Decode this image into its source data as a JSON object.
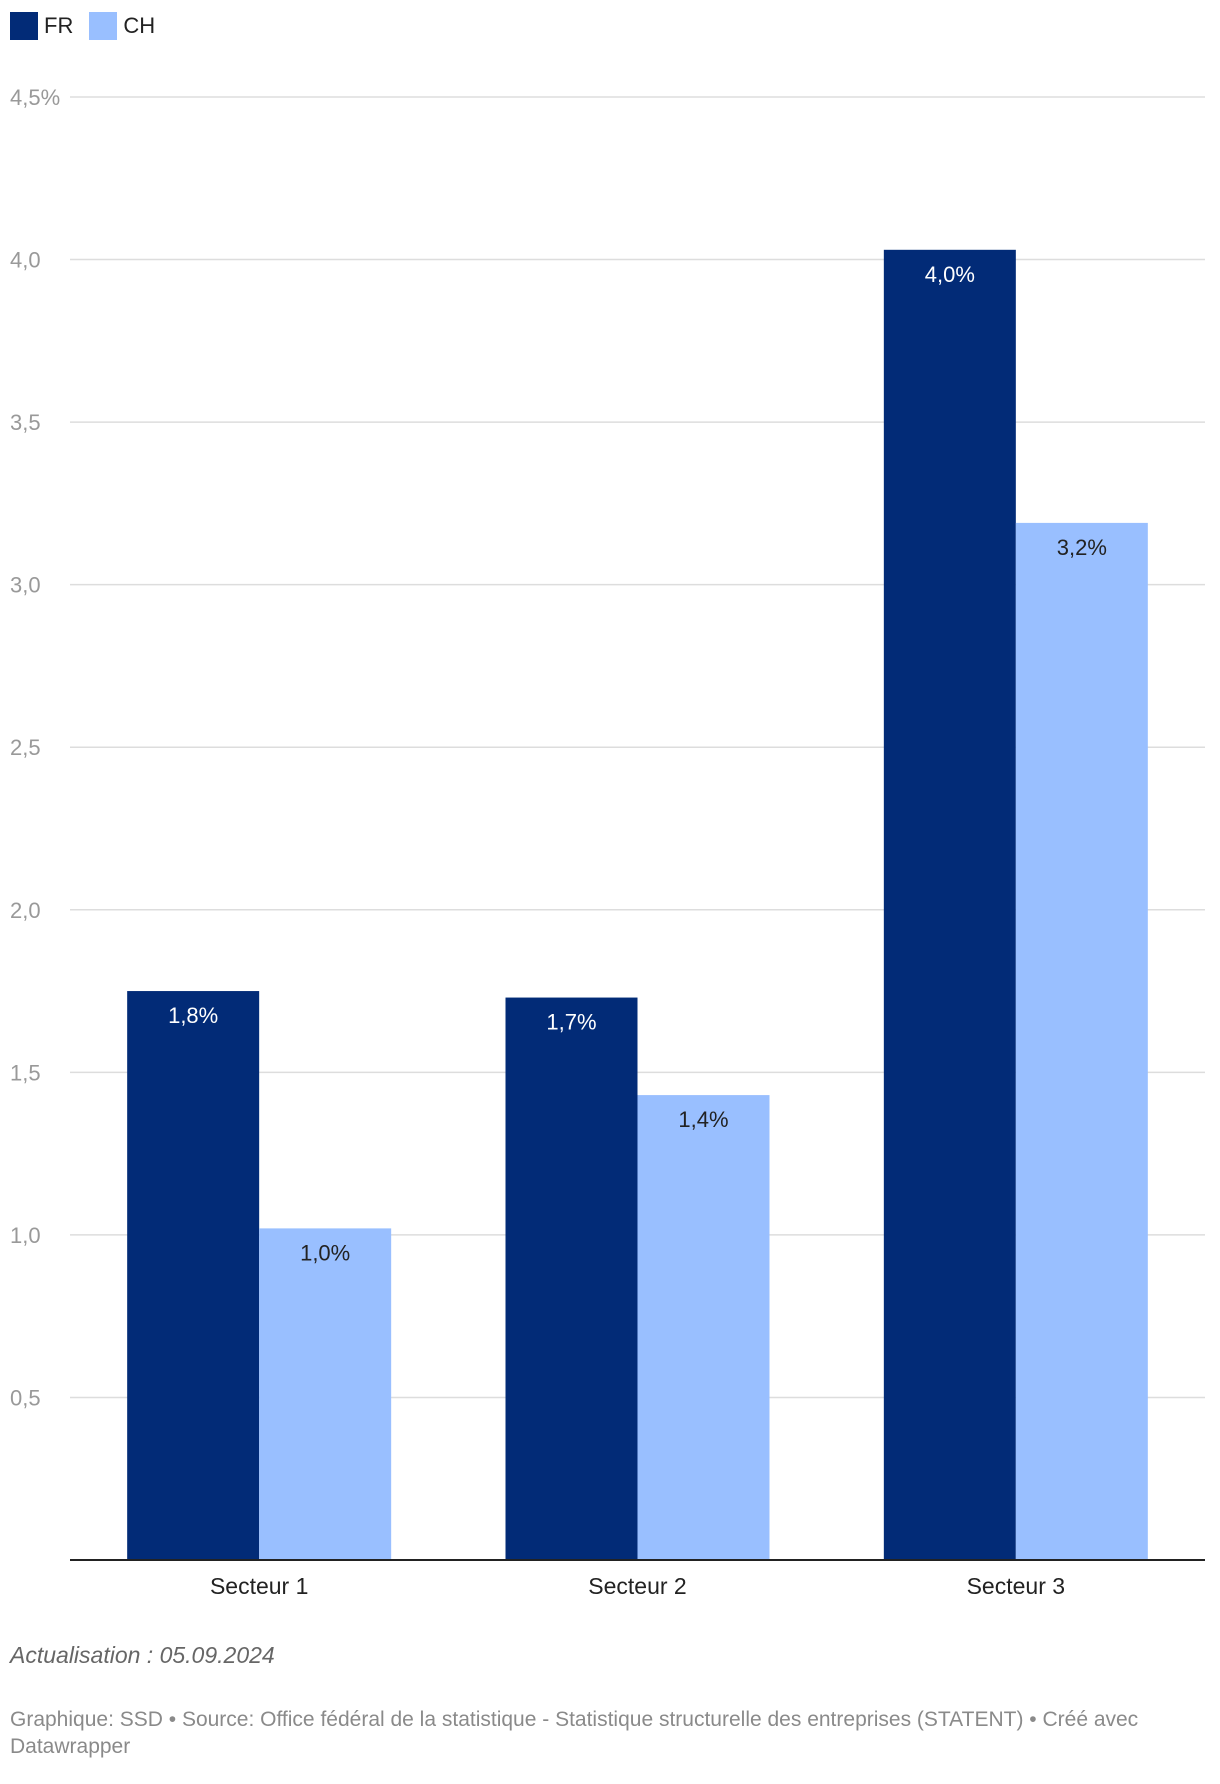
{
  "legend": [
    {
      "name": "FR",
      "color": "#022b77"
    },
    {
      "name": "CH",
      "color": "#99bfff"
    }
  ],
  "chart_data": {
    "type": "bar",
    "categories": [
      "Secteur 1",
      "Secteur 2",
      "Secteur 3"
    ],
    "series": [
      {
        "name": "FR",
        "color": "#022b77",
        "values": [
          1.75,
          1.73,
          4.03
        ],
        "labels": [
          "1,8%",
          "1,7%",
          "4,0%"
        ]
      },
      {
        "name": "CH",
        "color": "#99bfff",
        "values": [
          1.02,
          1.43,
          3.19
        ],
        "labels": [
          "1,0%",
          "1,4%",
          "3,2%"
        ]
      }
    ],
    "ylim": [
      0,
      4.5
    ],
    "yticks": [
      {
        "value": 0.5,
        "label": "0,5"
      },
      {
        "value": 1.0,
        "label": "1,0"
      },
      {
        "value": 1.5,
        "label": "1,5"
      },
      {
        "value": 2.0,
        "label": "2,0"
      },
      {
        "value": 2.5,
        "label": "2,5"
      },
      {
        "value": 3.0,
        "label": "3,0"
      },
      {
        "value": 3.5,
        "label": "3,5"
      },
      {
        "value": 4.0,
        "label": "4,0"
      },
      {
        "value": 4.5,
        "label": "4,5%"
      }
    ],
    "grid": true,
    "legend_position": "top-left"
  },
  "footer": {
    "update_note": "Actualisation : 05.09.2024",
    "source": "Graphique: SSD • Source: Office fédéral de la statistique - Statistique structurelle des entreprises (STATENT) • Créé avec Datawrapper"
  }
}
